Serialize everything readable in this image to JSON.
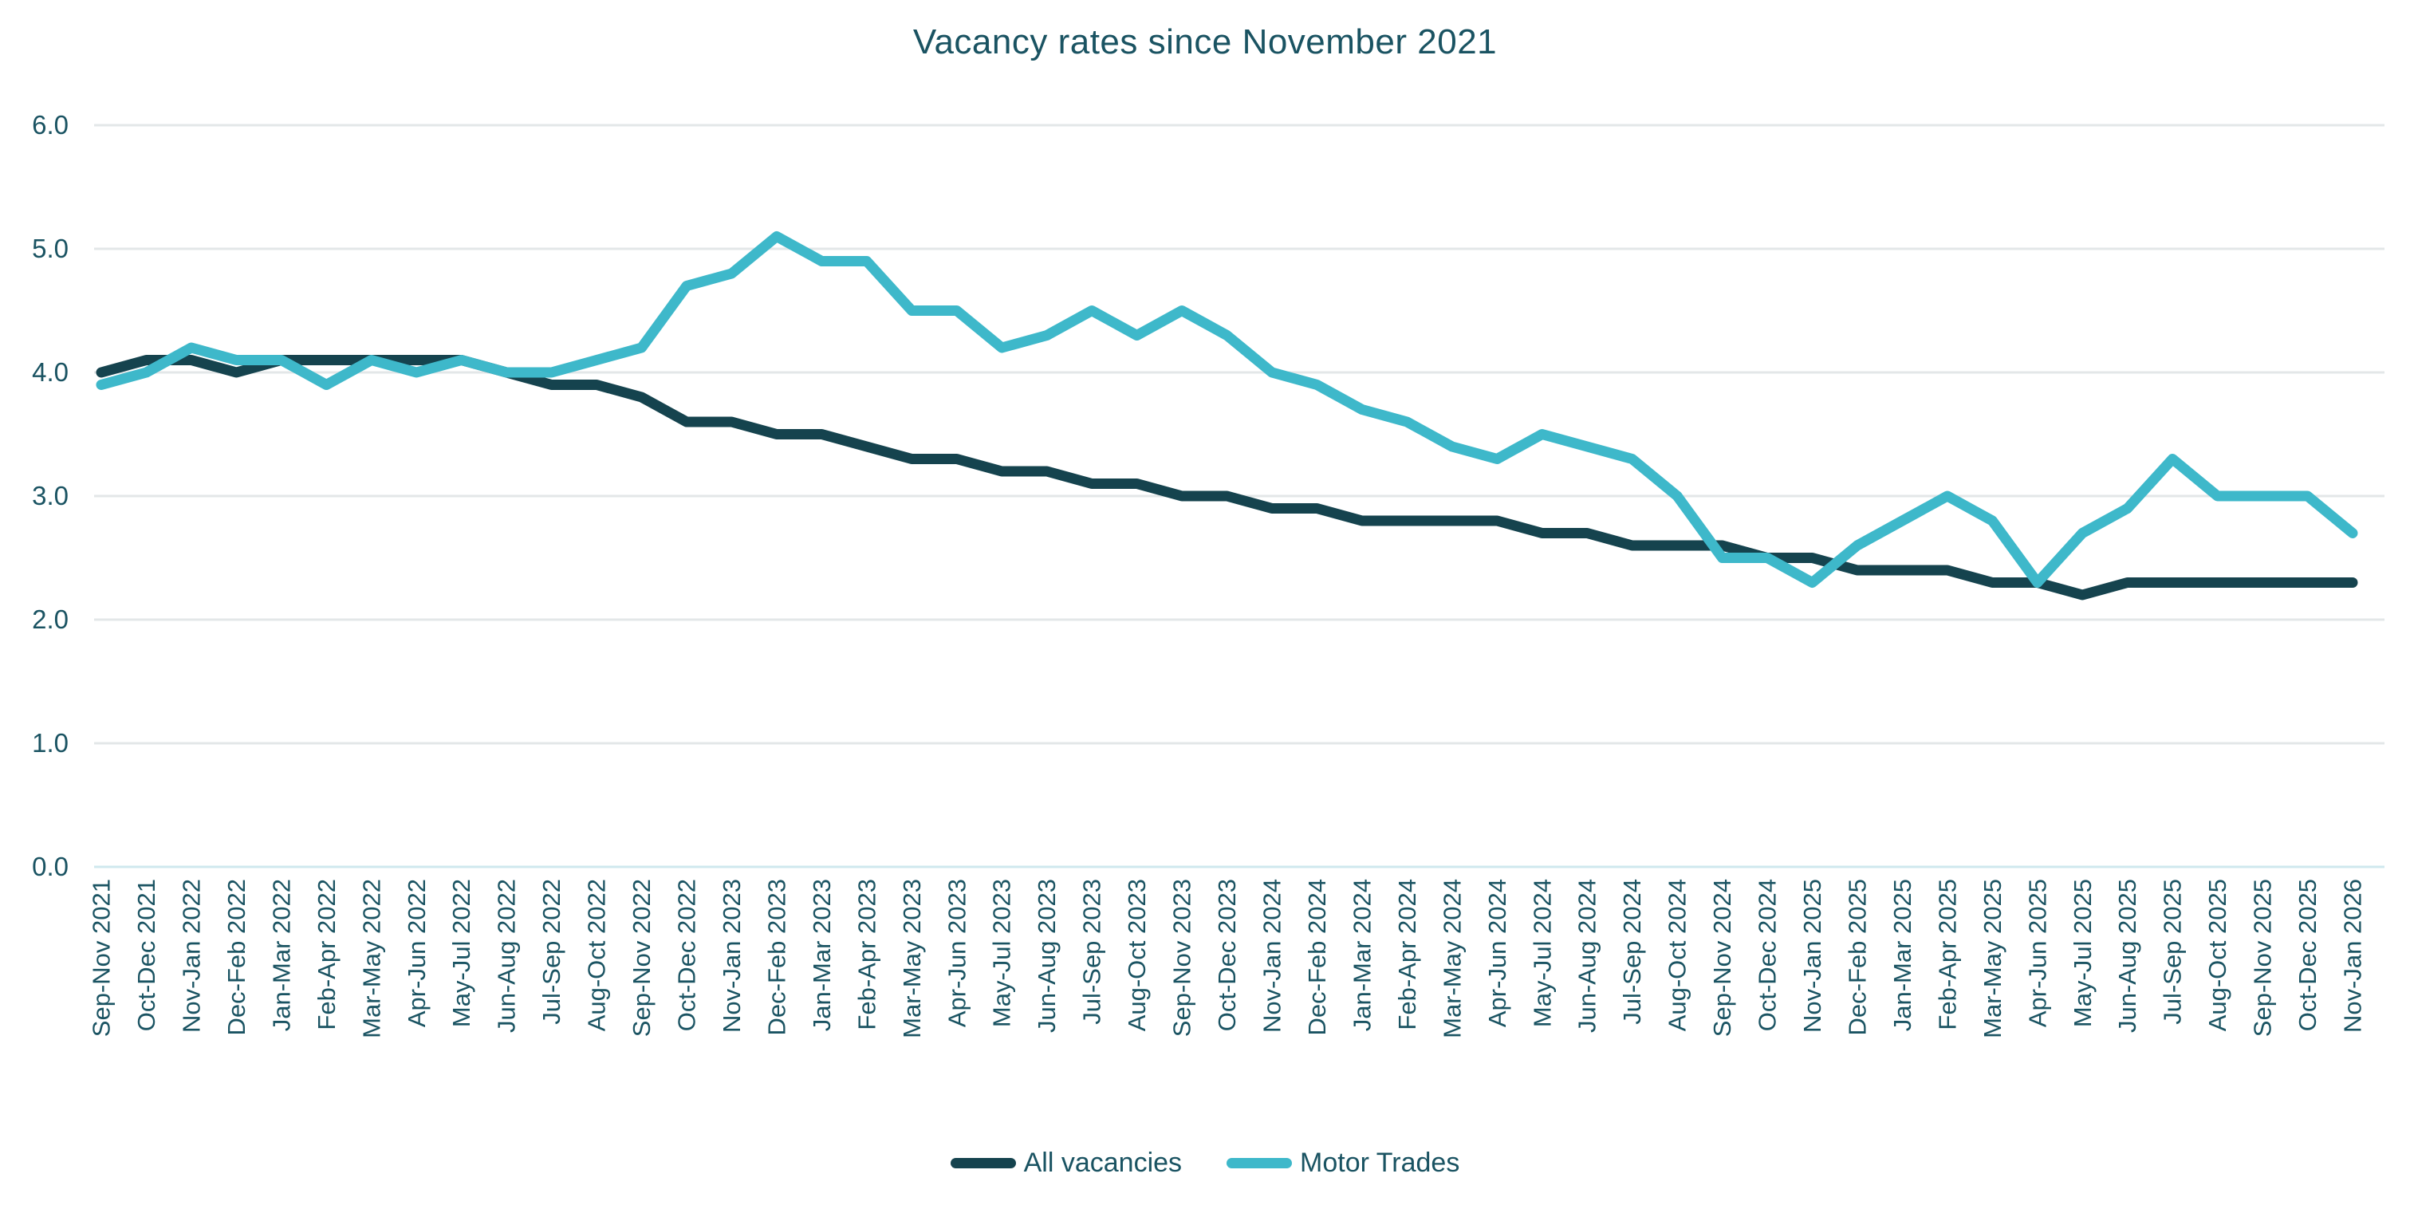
{
  "title": "Vacancy rates since November 2021",
  "chart_data": {
    "type": "line",
    "title": "Vacancy rates since November 2021",
    "xlabel": "",
    "ylabel": "",
    "ylim": [
      0.0,
      6.0
    ],
    "ytick_values": [
      6.0,
      5.0,
      4.0,
      3.0,
      2.0,
      1.0,
      0.0
    ],
    "ytick_labels": [
      "6.0",
      "5.0",
      "4.0",
      "3.0",
      "2.0",
      "1.0",
      "0.0"
    ],
    "grid": "horizontal",
    "legend_position": "bottom",
    "categories": [
      "Sep-Nov 2021",
      "Oct-Dec 2021",
      "Nov-Jan 2022",
      "Dec-Feb 2022",
      "Jan-Mar 2022",
      "Feb-Apr 2022",
      "Mar-May 2022",
      "Apr-Jun 2022",
      "May-Jul 2022",
      "Jun-Aug 2022",
      "Jul-Sep 2022",
      "Aug-Oct 2022",
      "Sep-Nov 2022",
      "Oct-Dec 2022",
      "Nov-Jan 2023",
      "Dec-Feb 2023",
      "Jan-Mar 2023",
      "Feb-Apr 2023",
      "Mar-May 2023",
      "Apr-Jun 2023",
      "May-Jul 2023",
      "Jun-Aug 2023",
      "Jul-Sep 2023",
      "Aug-Oct 2023",
      "Sep-Nov 2023",
      "Oct-Dec 2023",
      "Nov-Jan 2024",
      "Dec-Feb 2024",
      "Jan-Mar 2024",
      "Feb-Apr 2024",
      "Mar-May 2024",
      "Apr-Jun 2024",
      "May-Jul 2024",
      "Jun-Aug 2024",
      "Jul-Sep 2024",
      "Aug-Oct 2024",
      "Sep-Nov 2024",
      "Oct-Dec 2024",
      "Nov-Jan 2025",
      "Dec-Feb 2025",
      "Jan-Mar 2025",
      "Feb-Apr 2025",
      "Mar-May 2025",
      "Apr-Jun 2025",
      "May-Jul 2025",
      "Jun-Aug 2025",
      "Jul-Sep 2025",
      "Aug-Oct 2025",
      "Sep-Nov 2025",
      "Oct-Dec 2025",
      "Nov-Jan 2026"
    ],
    "series": [
      {
        "name": "All vacancies",
        "color": "#15434e",
        "values": [
          4.0,
          4.1,
          4.1,
          4.0,
          4.1,
          4.1,
          4.1,
          4.1,
          4.1,
          4.0,
          3.9,
          3.9,
          3.8,
          3.6,
          3.6,
          3.5,
          3.5,
          3.4,
          3.3,
          3.3,
          3.2,
          3.2,
          3.1,
          3.1,
          3.0,
          3.0,
          2.9,
          2.9,
          2.8,
          2.8,
          2.8,
          2.8,
          2.7,
          2.7,
          2.6,
          2.6,
          2.6,
          2.5,
          2.5,
          2.4,
          2.4,
          2.4,
          2.3,
          2.3,
          2.2,
          2.3,
          2.3,
          2.3,
          2.3,
          2.3,
          2.3
        ]
      },
      {
        "name": "Motor Trades",
        "color": "#3eb8ca",
        "values": [
          3.9,
          4.0,
          4.2,
          4.1,
          4.1,
          3.9,
          4.1,
          4.0,
          4.1,
          4.0,
          4.0,
          4.1,
          4.2,
          4.7,
          4.8,
          5.1,
          4.9,
          4.9,
          4.5,
          4.5,
          4.2,
          4.3,
          4.5,
          4.3,
          4.5,
          4.3,
          4.0,
          3.9,
          3.7,
          3.6,
          3.4,
          3.3,
          3.5,
          3.4,
          3.3,
          3.0,
          2.5,
          2.5,
          2.3,
          2.6,
          2.8,
          3.0,
          2.8,
          2.3,
          2.7,
          2.9,
          3.3,
          3.0,
          3.0,
          3.0,
          2.7
        ]
      }
    ]
  },
  "colors": {
    "background": "#ffffff",
    "gridline": "#e3e7e8",
    "baseline": "#cfe8ee",
    "text": "#1a5362",
    "series_all_vacancies": "#15434e",
    "series_motor_trades": "#3eb8ca"
  }
}
